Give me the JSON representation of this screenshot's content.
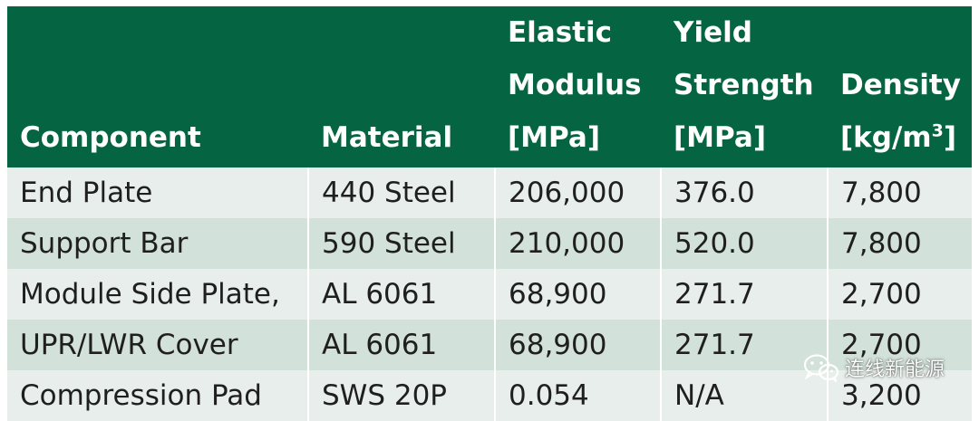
{
  "table": {
    "headers": {
      "component": "Component",
      "material": "Material",
      "modulus_l1": "Elastic",
      "modulus_l2": "Modulus",
      "modulus_l3": "[MPa]",
      "yield_l1": "Yield",
      "yield_l2": "Strength",
      "yield_l3": "[MPa]",
      "density_l1": "Density",
      "density_l2": "[kg/m",
      "density_sup": "3",
      "density_l3": "]"
    },
    "rows": [
      [
        "End Plate",
        "440 Steel",
        "206,000",
        "376.0",
        "7,800"
      ],
      [
        "Support Bar",
        "590 Steel",
        "210,000",
        "520.0",
        "7,800"
      ],
      [
        "Module Side Plate,",
        "AL 6061",
        "68,900",
        "271.7",
        "2,700"
      ],
      [
        "UPR/LWR Cover",
        "AL 6061",
        "68,900",
        "271.7",
        "2,700"
      ],
      [
        "Compression Pad",
        "SWS 20P",
        "0.054",
        "N/A",
        "3,200"
      ]
    ]
  },
  "watermark": {
    "text": "连线新能源",
    "icon": "wechat-icon"
  },
  "colors": {
    "header_bg": "#056543",
    "row_light": "#e7eeeb",
    "row_dark": "#d2e1d9"
  }
}
